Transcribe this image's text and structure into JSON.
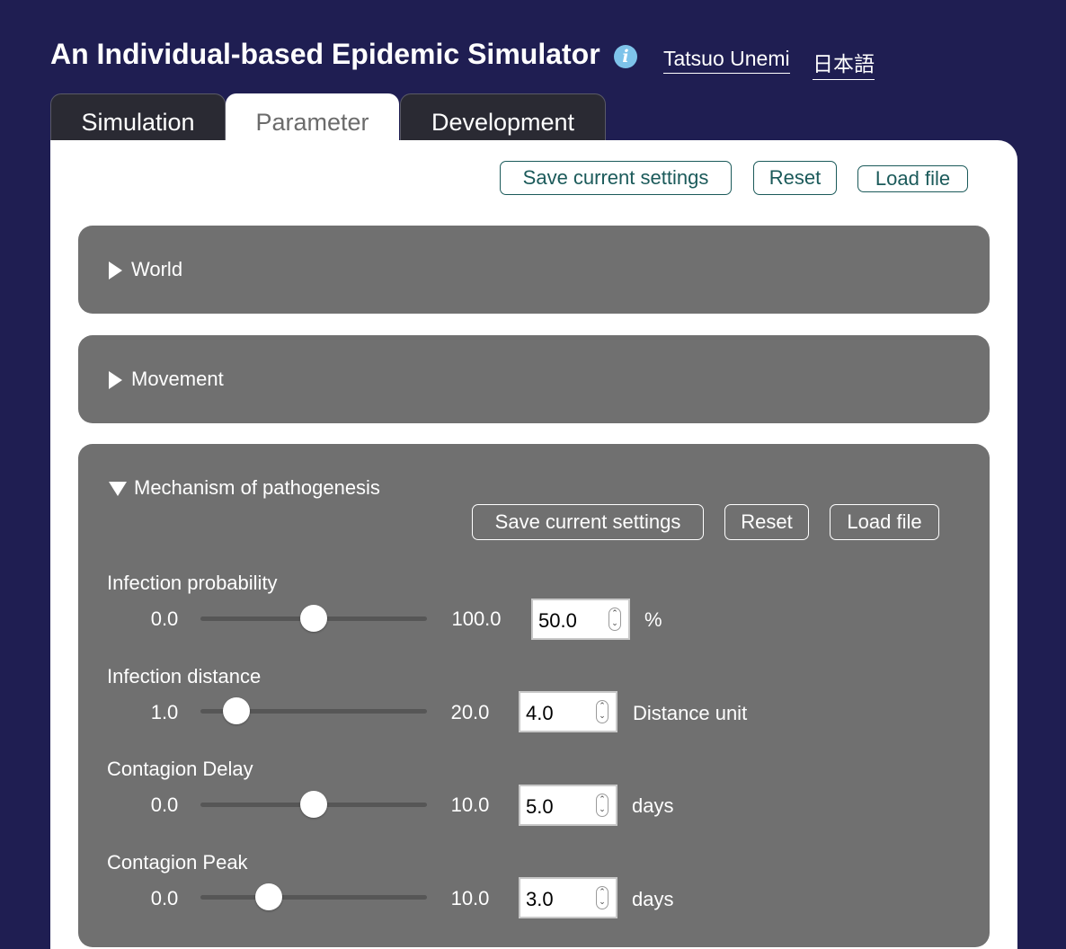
{
  "header": {
    "title": "An Individual-based Epidemic Simulator",
    "info_icon": "info-icon",
    "author_link": "Tatsuo Unemi",
    "language_link": "日本語"
  },
  "tabs": [
    {
      "label": "Simulation",
      "active": false
    },
    {
      "label": "Parameter",
      "active": true
    },
    {
      "label": "Development",
      "active": false
    }
  ],
  "toolbar": {
    "save_label": "Save current settings",
    "reset_label": "Reset",
    "load_label": "Load file"
  },
  "sections": {
    "world": {
      "label": "World",
      "expanded": false
    },
    "movement": {
      "label": "Movement",
      "expanded": false
    },
    "pathogenesis": {
      "label": "Mechanism of pathogenesis",
      "expanded": true,
      "save_label": "Save current settings",
      "reset_label": "Reset",
      "load_label": "Load file",
      "params": [
        {
          "label": "Infection probability",
          "min": "0.0",
          "max": "100.0",
          "value": "50.0",
          "unit": "%",
          "level": 0.5
        },
        {
          "label": "Infection distance",
          "min": "1.0",
          "max": "20.0",
          "value": "4.0",
          "unit": "Distance unit",
          "level": 0.158
        },
        {
          "label": "Contagion Delay",
          "min": "0.0",
          "max": "10.0",
          "value": "5.0",
          "unit": "days",
          "level": 0.5
        },
        {
          "label": "Contagion Peak",
          "min": "0.0",
          "max": "10.0",
          "value": "3.0",
          "unit": "days",
          "level": 0.3
        }
      ]
    }
  },
  "colors": {
    "page_background": "#1f1e52",
    "section_background": "#707070",
    "button_accent": "#1b5a5a",
    "info_icon": "#7ec3ea"
  }
}
